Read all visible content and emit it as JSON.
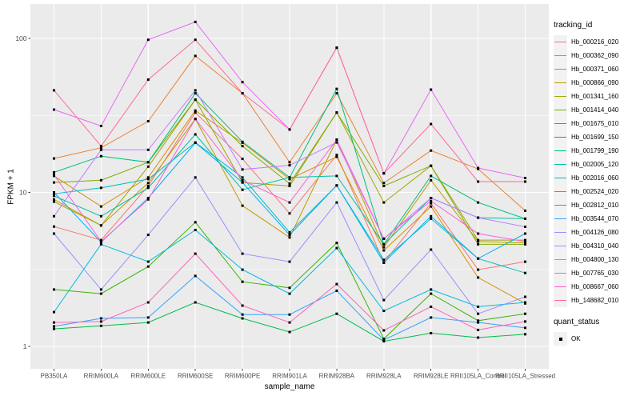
{
  "figure": {
    "xlabel": "sample_name",
    "ylabel": "FPKM + 1"
  },
  "chart_data": {
    "type": "line",
    "title": "",
    "xlabel": "sample_name",
    "ylabel": "FPKM + 1",
    "y_scale": "log10",
    "y_ticks": [
      1,
      10,
      100
    ],
    "y_minor_gridlines": [
      3.1623,
      31.623
    ],
    "ylim": [
      0.72,
      165
    ],
    "grid": true,
    "legend_position": "right",
    "legend_title": "tracking_id",
    "point_marker": "black-square",
    "quant_legend": {
      "title": "quant_status",
      "items": [
        "OK"
      ]
    },
    "colors": {
      "panel_bg": "#EBEBEB",
      "gridline": "#FFFFFF",
      "tick": "#333333",
      "tick_label": "#4D4D4D",
      "point": "#000000",
      "legend_key_bg": "#F2F2F2"
    },
    "categories": [
      "PB350LA",
      "RRIM600LA",
      "RRIM600LE",
      "RRIM600SE",
      "RRIM600PE",
      "RRIM901LA",
      "RRIM928BA",
      "RRIM928LA",
      "RRIM928LE",
      "RRII105LA_Control",
      "RRII105LA_Stressed"
    ],
    "series": [
      {
        "name": "Hb_000216_020",
        "color": "#F8766D",
        "values": [
          6.0,
          4.9,
          11.0,
          33.0,
          16.5,
          7.3,
          17.5,
          3.5,
          8.5,
          3.15,
          3.55
        ]
      },
      {
        "name": "Hb_000362_090",
        "color": "#EA8331",
        "values": [
          16.6,
          19.5,
          29.0,
          77.0,
          44.0,
          15.7,
          44.0,
          11.5,
          18.7,
          14.2,
          7.6
        ]
      },
      {
        "name": "Hb_000371_060",
        "color": "#D89000",
        "values": [
          12.8,
          8.1,
          12.5,
          34.0,
          21.0,
          12.2,
          17.0,
          4.2,
          8.1,
          2.8,
          1.9
        ]
      },
      {
        "name": "Hb_000866_090",
        "color": "#C09B00",
        "values": [
          9.0,
          6.1,
          11.5,
          30.0,
          8.2,
          5.1,
          22.0,
          4.4,
          12.0,
          4.8,
          4.7
        ]
      },
      {
        "name": "Hb_001341_160",
        "color": "#A3A500",
        "values": [
          8.7,
          6.1,
          14.7,
          40.0,
          11.6,
          11.0,
          33.0,
          8.6,
          14.9,
          4.9,
          4.9
        ]
      },
      {
        "name": "Hb_001414_040",
        "color": "#7CAE00",
        "values": [
          11.6,
          12.0,
          15.7,
          40.0,
          20.0,
          11.4,
          33.0,
          11.0,
          14.9,
          4.6,
          4.6
        ]
      },
      {
        "name": "Hb_001675_010",
        "color": "#39B600",
        "values": [
          2.34,
          2.2,
          3.3,
          6.4,
          2.63,
          2.4,
          4.7,
          1.12,
          2.2,
          1.47,
          1.63
        ]
      },
      {
        "name": "Hb_001699_150",
        "color": "#00BB4E",
        "values": [
          1.3,
          1.36,
          1.43,
          1.93,
          1.52,
          1.24,
          1.63,
          1.08,
          1.22,
          1.14,
          1.2
        ]
      },
      {
        "name": "Hb_001799_190",
        "color": "#00BF7D",
        "values": [
          13.5,
          17.2,
          15.7,
          44.0,
          21.3,
          12.5,
          47.0,
          4.6,
          12.8,
          8.6,
          6.75
        ]
      },
      {
        "name": "Hb_002005_120",
        "color": "#00C1A3",
        "values": [
          9.5,
          7.0,
          10.7,
          23.8,
          10.4,
          12.5,
          12.8,
          4.6,
          9.2,
          6.85,
          6.75
        ]
      },
      {
        "name": "Hb_002016_060",
        "color": "#00BFC4",
        "values": [
          9.8,
          10.7,
          12.2,
          21.1,
          12.5,
          5.5,
          11.1,
          3.65,
          6.75,
          3.72,
          3.0
        ]
      },
      {
        "name": "Hb_002524_020",
        "color": "#00BAE0",
        "values": [
          1.67,
          4.6,
          3.55,
          5.7,
          3.15,
          2.2,
          4.35,
          1.7,
          2.34,
          1.81,
          1.93
        ]
      },
      {
        "name": "Hb_002812_010",
        "color": "#00B0F6",
        "values": [
          10.0,
          4.75,
          9.2,
          21.0,
          11.6,
          5.3,
          11.1,
          3.5,
          7.0,
          3.72,
          5.4
        ]
      },
      {
        "name": "Hb_003544_070",
        "color": "#35A2FF",
        "values": [
          1.35,
          1.52,
          1.54,
          2.87,
          1.61,
          1.61,
          2.3,
          1.1,
          1.54,
          1.43,
          1.32
        ]
      },
      {
        "name": "Hb_004126_080",
        "color": "#9590FF",
        "values": [
          5.4,
          2.34,
          5.3,
          12.5,
          4.0,
          3.55,
          8.6,
          2.0,
          4.25,
          1.63,
          2.1
        ]
      },
      {
        "name": "Hb_004310_040",
        "color": "#C77CFF",
        "values": [
          7.0,
          18.9,
          18.9,
          46.0,
          14.1,
          15.0,
          21.1,
          5.0,
          9.2,
          6.85,
          5.98
        ]
      },
      {
        "name": "Hb_004800_130",
        "color": "#E76BF3",
        "values": [
          34.5,
          27.0,
          98.0,
          128.0,
          52.0,
          25.6,
          87.0,
          13.3,
          46.5,
          14.4,
          12.4
        ]
      },
      {
        "name": "Hb_007765_030",
        "color": "#FA62DB",
        "values": [
          13.0,
          4.8,
          9.0,
          30.0,
          12.0,
          8.6,
          22.0,
          5.0,
          8.8,
          5.4,
          4.8
        ]
      },
      {
        "name": "Hb_008667_060",
        "color": "#FF62BC",
        "values": [
          1.43,
          1.45,
          1.93,
          4.0,
          1.84,
          1.43,
          2.54,
          1.27,
          1.81,
          1.28,
          1.45
        ]
      },
      {
        "name": "Hb_148682_010",
        "color": "#FF6A98",
        "values": [
          46.0,
          20.0,
          54.0,
          98.0,
          44.0,
          25.6,
          87.0,
          13.3,
          27.8,
          11.75,
          11.75
        ]
      }
    ]
  }
}
